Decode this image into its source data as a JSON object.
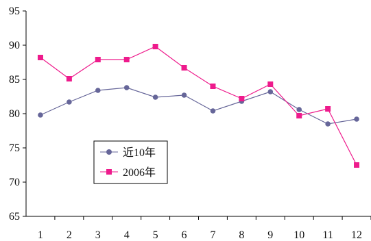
{
  "chart_data": {
    "type": "line",
    "x": [
      "1",
      "2",
      "3",
      "4",
      "5",
      "6",
      "7",
      "8",
      "9",
      "10",
      "11",
      "12"
    ],
    "ylim": [
      65,
      95
    ],
    "yticks": [
      "65",
      "70",
      "75",
      "80",
      "85",
      "90",
      "95"
    ],
    "grid": false,
    "legend_position": "bottom-left",
    "series": [
      {
        "name": "近10年",
        "color": "#666699",
        "marker": "circle",
        "values": [
          79.8,
          81.7,
          83.4,
          83.8,
          82.4,
          82.7,
          80.4,
          81.8,
          83.2,
          80.6,
          78.5,
          79.2
        ]
      },
      {
        "name": "2006年",
        "color": "#ee1b8c",
        "marker": "square",
        "values": [
          88.2,
          85.1,
          87.9,
          87.9,
          89.8,
          86.7,
          84.0,
          82.2,
          84.3,
          79.7,
          80.7,
          72.5
        ]
      }
    ]
  }
}
